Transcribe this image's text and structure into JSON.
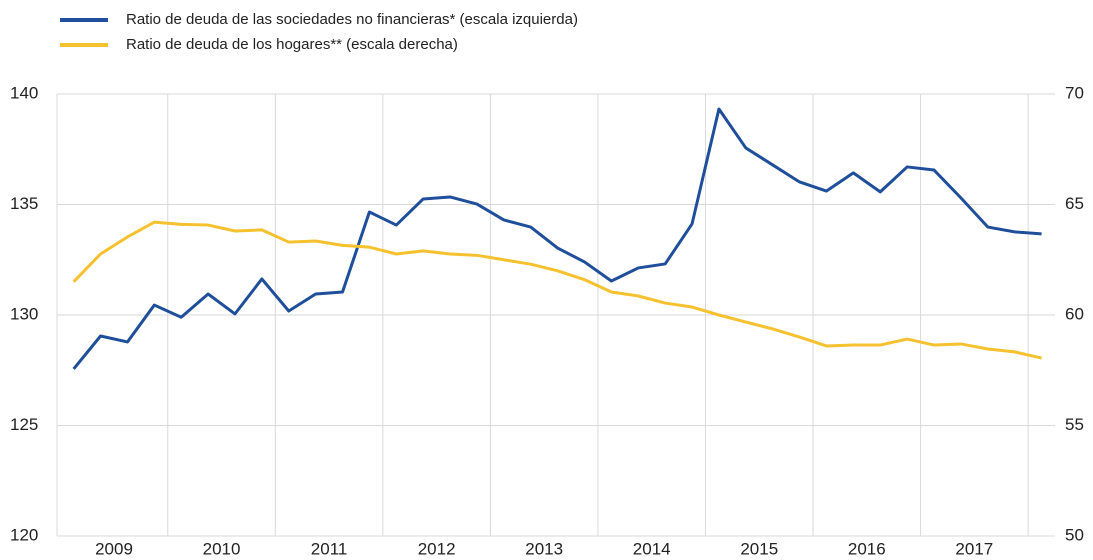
{
  "chart_data": {
    "type": "line",
    "x": [
      2009.125,
      2009.375,
      2009.625,
      2009.875,
      2010.125,
      2010.375,
      2010.625,
      2010.875,
      2011.125,
      2011.375,
      2011.625,
      2011.875,
      2012.125,
      2012.375,
      2012.625,
      2012.875,
      2013.125,
      2013.375,
      2013.625,
      2013.875,
      2014.125,
      2014.375,
      2014.625,
      2014.875,
      2015.125,
      2015.375,
      2015.625,
      2015.875,
      2016.125,
      2016.375,
      2016.625,
      2016.875,
      2017.125,
      2017.375,
      2017.625,
      2017.875,
      2018.125
    ],
    "series": [
      {
        "name": "Ratio de deuda de las sociedades no financieras* (escala izquierda)",
        "color": "#1f4e9a",
        "axis": "y",
        "values": [
          127.56,
          129.05,
          128.78,
          130.45,
          129.9,
          130.95,
          130.05,
          131.63,
          130.18,
          130.95,
          131.04,
          134.66,
          134.07,
          135.25,
          135.34,
          135.02,
          134.3,
          133.98,
          133.03,
          132.4,
          131.54,
          132.13,
          132.31,
          134.12,
          139.32,
          137.56,
          136.79,
          136.02,
          135.61,
          136.43,
          135.57,
          136.7,
          136.56,
          135.3,
          133.98,
          133.76,
          133.67
        ]
      },
      {
        "name": "Ratio de deuda de los hogares** (escala derecha)",
        "color": "#f5c12e",
        "axis": "y2",
        "values": [
          61.5,
          62.76,
          63.53,
          64.2,
          64.1,
          64.07,
          63.8,
          63.85,
          63.3,
          63.35,
          63.15,
          63.07,
          62.76,
          62.9,
          62.76,
          62.7,
          62.5,
          62.3,
          62.0,
          61.6,
          61.04,
          60.86,
          60.54,
          60.36,
          60.0,
          59.68,
          59.37,
          59.0,
          58.6,
          58.64,
          58.64,
          58.91,
          58.64,
          58.69,
          58.46,
          58.33,
          58.05
        ]
      }
    ],
    "xlim": [
      2008.97,
      2018.25
    ],
    "xticks": [
      {
        "value": 2009.5,
        "label": "2009"
      },
      {
        "value": 2010.5,
        "label": "2010"
      },
      {
        "value": 2011.5,
        "label": "2011"
      },
      {
        "value": 2012.5,
        "label": "2012"
      },
      {
        "value": 2013.5,
        "label": "2013"
      },
      {
        "value": 2014.5,
        "label": "2014"
      },
      {
        "value": 2015.5,
        "label": "2015"
      },
      {
        "value": 2016.5,
        "label": "2016"
      },
      {
        "value": 2017.5,
        "label": "2017"
      }
    ],
    "xgrid": [
      2010,
      2011,
      2012,
      2013,
      2014,
      2015,
      2016,
      2017,
      2018
    ],
    "ylim": [
      120,
      140
    ],
    "yticks": [
      120,
      125,
      130,
      135,
      140
    ],
    "y2lim": [
      50,
      70
    ],
    "y2ticks": [
      50,
      55,
      60,
      65,
      70
    ],
    "grid": true,
    "legend": "top-left"
  }
}
